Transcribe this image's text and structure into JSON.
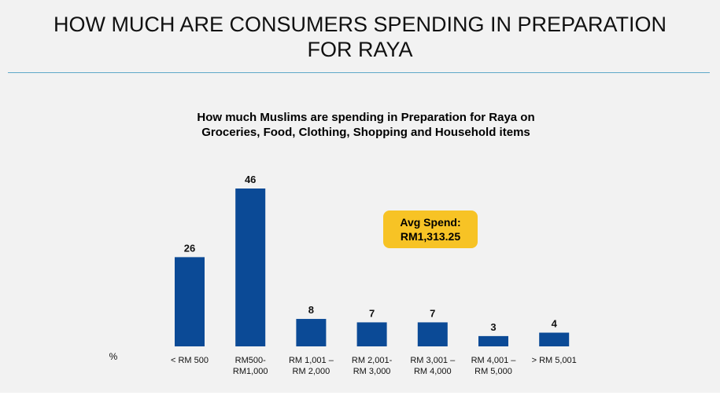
{
  "header": {
    "title": "HOW MUCH ARE CONSUMERS SPENDING IN PREPARATION\nFOR RAYA"
  },
  "callout": {
    "text": "Avg Spend:\nRM1,313.25"
  },
  "colors": {
    "bar": "#0b4a96",
    "callout": "#f7c325",
    "rule": "#5fa8c9",
    "background": "#f2f2f2"
  },
  "chart_data": {
    "type": "bar",
    "title": "How much Muslims are spending in Preparation for Raya on\nGroceries, Food, Clothing, Shopping and Household items",
    "ylabel": "%",
    "xlabel": "",
    "categories": [
      [
        "< RM 500"
      ],
      [
        "RM500-",
        "RM1,000"
      ],
      [
        "RM 1,001 –",
        "RM 2,000"
      ],
      [
        "RM 2,001-",
        "RM 3,000"
      ],
      [
        "RM 3,001 –",
        "RM 4,000"
      ],
      [
        "RM 4,001 –",
        "RM 5,000"
      ],
      [
        "> RM 5,001"
      ]
    ],
    "values": [
      26,
      46,
      8,
      7,
      7,
      3,
      4
    ],
    "ylim": [
      0,
      46
    ],
    "grid": false,
    "legend": "none"
  }
}
